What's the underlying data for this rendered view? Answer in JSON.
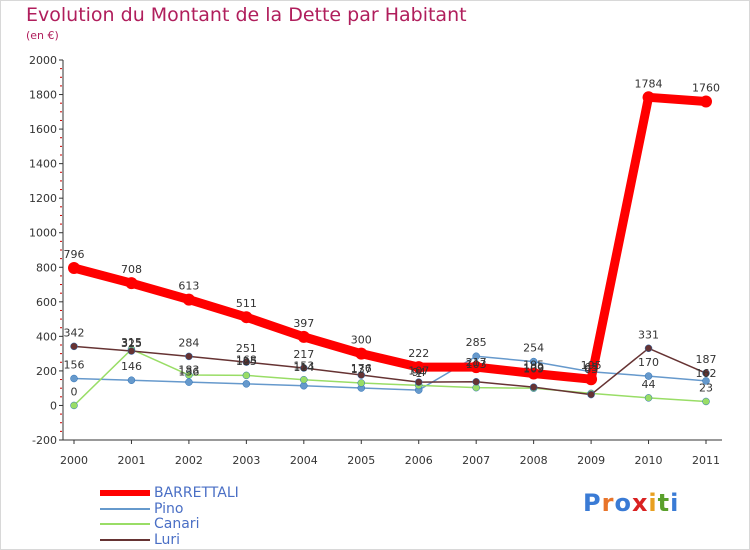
{
  "chart_data": {
    "type": "line",
    "title": "Evolution du Montant de la Dette par Habitant",
    "subtitle": "(en €)",
    "xlabel": "",
    "ylabel": "",
    "x": [
      "2000",
      "2001",
      "2002",
      "2003",
      "2004",
      "2005",
      "2006",
      "2007",
      "2008",
      "2009",
      "2010",
      "2011"
    ],
    "ylim": [
      -200,
      2000
    ],
    "yticks": [
      -200,
      0,
      200,
      400,
      600,
      800,
      1000,
      1200,
      1400,
      1600,
      1800,
      2000
    ],
    "grid": false,
    "legend_position": "bottom-left",
    "series": [
      {
        "name": "BARRETTALI",
        "color": "#ff0000",
        "values": [
          796,
          708,
          613,
          511,
          397,
          300,
          222,
          222,
          185,
          152,
          1784,
          1760
        ],
        "labels": [
          "796",
          "708",
          "613",
          "511",
          "397",
          "300",
          "222",
          "",
          "",
          "",
          "1784",
          "1760"
        ]
      },
      {
        "name": "Pino",
        "color": "#6699cc",
        "values": [
          156,
          146,
          135,
          125,
          114,
          101,
          89,
          285,
          254,
          195,
          170,
          142
        ],
        "labels": [
          "156",
          "146",
          "",
          "",
          "",
          "",
          "",
          "285",
          "254",
          "",
          "170",
          ""
        ]
      },
      {
        "name": "Canari",
        "color": "#99dd66",
        "values": [
          0,
          325,
          176,
          174,
          149,
          130,
          116,
          103,
          100,
          70,
          44,
          23
        ],
        "labels": [
          "0",
          "",
          "",
          "",
          "",
          "",
          "",
          "",
          "",
          "",
          "44",
          "23"
        ]
      },
      {
        "name": "Luri",
        "color": "#663333",
        "values": [
          342,
          315,
          284,
          251,
          217,
          176,
          135,
          137,
          106,
          63,
          331,
          187
        ],
        "labels": [
          "342",
          "",
          "284",
          "251",
          "217",
          "",
          "",
          "",
          "",
          "",
          "331",
          "187"
        ]
      }
    ],
    "overlap_labels": [
      "325",
      "315",
      "183",
      "136",
      "168",
      "125",
      "153",
      "114",
      "176",
      "137",
      "107",
      "94",
      "1",
      "217",
      "103",
      "195",
      "109",
      "109",
      "195",
      "63",
      "63",
      "162"
    ]
  },
  "legend": {
    "items": [
      {
        "label": "BARRETTALI"
      },
      {
        "label": "Pino"
      },
      {
        "label": "Canari"
      },
      {
        "label": "Luri"
      }
    ]
  },
  "logo": {
    "letters": [
      "P",
      "r",
      "o",
      "x",
      "i",
      "t",
      "i"
    ],
    "colors": [
      "#3a7bd5",
      "#e8742a",
      "#3a7bd5",
      "#d92121",
      "#e8a020",
      "#5aa02c",
      "#3a7bd5"
    ]
  }
}
